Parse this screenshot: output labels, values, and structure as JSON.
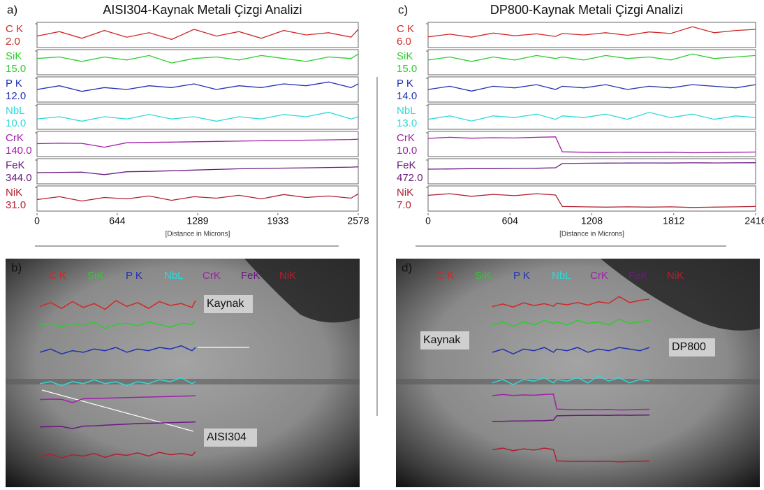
{
  "chart_data": [
    {
      "type": "line",
      "panel_label": "a)",
      "title": "AISI304-Kaynak Metali Çizgi Analizi",
      "x_label": "[Distance in Microns]",
      "xlim": [
        0,
        2578
      ],
      "xticks": [
        0,
        644,
        1289,
        1933,
        2578
      ],
      "x": [
        0,
        180,
        360,
        540,
        720,
        900,
        1080,
        1260,
        1440,
        1620,
        1800,
        1980,
        2160,
        2340,
        2520,
        2578
      ],
      "series": [
        {
          "name": "C K",
          "color": "#d02828",
          "ylim": [
            0,
            2
          ],
          "yticks": [
            {
              "value": 2,
              "label": "2.0"
            }
          ],
          "values": [
            0.9,
            1.3,
            0.7,
            1.4,
            0.8,
            1.2,
            0.6,
            1.5,
            0.9,
            1.3,
            0.7,
            1.4,
            1.0,
            1.2,
            0.8,
            1.5
          ]
        },
        {
          "name": "SiK",
          "color": "#2ecc2e",
          "ylim": [
            0,
            15
          ],
          "yticks": [
            {
              "value": 15,
              "label": "15.0"
            }
          ],
          "values": [
            10,
            11,
            8,
            11,
            9,
            12,
            7,
            10,
            11,
            9,
            12,
            10,
            8,
            11,
            10,
            13
          ]
        },
        {
          "name": "P K",
          "color": "#2030b0",
          "ylim": [
            0,
            12
          ],
          "yticks": [
            {
              "value": 12,
              "label": "12.0"
            }
          ],
          "values": [
            6,
            8,
            5,
            7,
            6,
            8,
            7,
            9,
            6,
            8,
            7,
            9,
            8,
            10,
            7,
            9
          ]
        },
        {
          "name": "NbL",
          "color": "#30d8d8",
          "ylim": [
            0,
            10
          ],
          "yticks": [
            {
              "value": 10,
              "label": "10.0"
            }
          ],
          "values": [
            4,
            5,
            3,
            5,
            4,
            6,
            4,
            5,
            3,
            5,
            4,
            6,
            5,
            7,
            4,
            5
          ]
        },
        {
          "name": "CrK",
          "color": "#a020a8",
          "ylim": [
            0,
            140
          ],
          "yticks": [
            {
              "value": 140,
              "label": "140.0"
            }
          ],
          "values": [
            72,
            75,
            74,
            50,
            78,
            80,
            82,
            84,
            86,
            88,
            90,
            92,
            94,
            96,
            98,
            100
          ]
        },
        {
          "name": "FeK",
          "color": "#6a1a80",
          "ylim": [
            0,
            344
          ],
          "yticks": [
            {
              "value": 344,
              "label": "344.0"
            }
          ],
          "values": [
            150,
            155,
            158,
            120,
            165,
            170,
            180,
            190,
            200,
            210,
            215,
            220,
            225,
            230,
            235,
            240
          ]
        },
        {
          "name": "NiK",
          "color": "#b02030",
          "ylim": [
            0,
            31
          ],
          "yticks": [
            {
              "value": 31,
              "label": "31.0"
            }
          ],
          "values": [
            14,
            18,
            12,
            17,
            15,
            19,
            13,
            18,
            16,
            20,
            15,
            21,
            17,
            19,
            16,
            22
          ]
        }
      ],
      "image": {
        "panel_label": "b)",
        "annotations": [
          "Kaynak",
          "AISI304"
        ]
      }
    },
    {
      "type": "line",
      "panel_label": "c)",
      "title": "DP800-Kaynak Metali Çizgi Analizi",
      "x_label": "[Distance in Microns]",
      "xlim": [
        0,
        2416
      ],
      "xticks": [
        0,
        604,
        1208,
        1812,
        2416
      ],
      "x": [
        0,
        160,
        320,
        480,
        640,
        800,
        940,
        990,
        1150,
        1310,
        1470,
        1630,
        1790,
        1950,
        2110,
        2270,
        2416
      ],
      "series": [
        {
          "name": "C K",
          "color": "#d02828",
          "ylim": [
            0,
            6
          ],
          "yticks": [
            {
              "value": 6,
              "label": "6.0"
            }
          ],
          "values": [
            2.5,
            3.2,
            2.4,
            3.5,
            2.8,
            3.3,
            2.6,
            3.4,
            3.0,
            3.6,
            2.9,
            3.8,
            3.4,
            5.2,
            3.6,
            4.2,
            4.5
          ]
        },
        {
          "name": "SiK",
          "color": "#2ecc2e",
          "ylim": [
            0,
            15
          ],
          "yticks": [
            {
              "value": 15,
              "label": "15.0"
            }
          ],
          "values": [
            9,
            11,
            8,
            11,
            9,
            12,
            10,
            11,
            9,
            12,
            10,
            11,
            9,
            13,
            10,
            11,
            12
          ]
        },
        {
          "name": "P K",
          "color": "#2030b0",
          "ylim": [
            0,
            14
          ],
          "yticks": [
            {
              "value": 14,
              "label": "14.0"
            }
          ],
          "values": [
            7,
            9,
            6,
            9,
            8,
            10,
            7,
            9,
            8,
            10,
            7,
            9,
            8,
            10,
            9,
            8,
            10
          ]
        },
        {
          "name": "NbL",
          "color": "#30d8d8",
          "ylim": [
            0,
            13
          ],
          "yticks": [
            {
              "value": 13,
              "label": "13.0"
            }
          ],
          "values": [
            5,
            7,
            4,
            7,
            6,
            8,
            5,
            7,
            6,
            8,
            5,
            9,
            6,
            8,
            5,
            7,
            6
          ]
        },
        {
          "name": "CrK",
          "color": "#a020a8",
          "ylim": [
            0,
            10
          ],
          "yticks": [
            {
              "value": 10,
              "label": "10.0"
            }
          ],
          "values": [
            7.5,
            8,
            7.6,
            7.8,
            7.7,
            8,
            8.2,
            1.5,
            1.3,
            1.2,
            1.3,
            1.2,
            1.3,
            1.1,
            1.2,
            1.3,
            1.4
          ]
        },
        {
          "name": "FeK",
          "color": "#6a1a80",
          "ylim": [
            0,
            472
          ],
          "yticks": [
            {
              "value": 472,
              "label": "472.0"
            }
          ],
          "values": [
            280,
            285,
            290,
            290,
            295,
            300,
            310,
            400,
            405,
            408,
            410,
            412,
            410,
            414,
            412,
            415,
            416
          ]
        },
        {
          "name": "NiK",
          "color": "#b02030",
          "ylim": [
            0,
            7
          ],
          "yticks": [
            {
              "value": 7,
              "label": "7.0"
            }
          ],
          "values": [
            4.5,
            5,
            4.2,
            4.8,
            4.4,
            5,
            4.6,
            1.0,
            0.9,
            0.8,
            0.9,
            0.8,
            0.9,
            0.7,
            0.8,
            0.9,
            1.0
          ]
        }
      ],
      "image": {
        "panel_label": "d)",
        "annotations": [
          "Kaynak",
          "DP800"
        ]
      }
    }
  ]
}
